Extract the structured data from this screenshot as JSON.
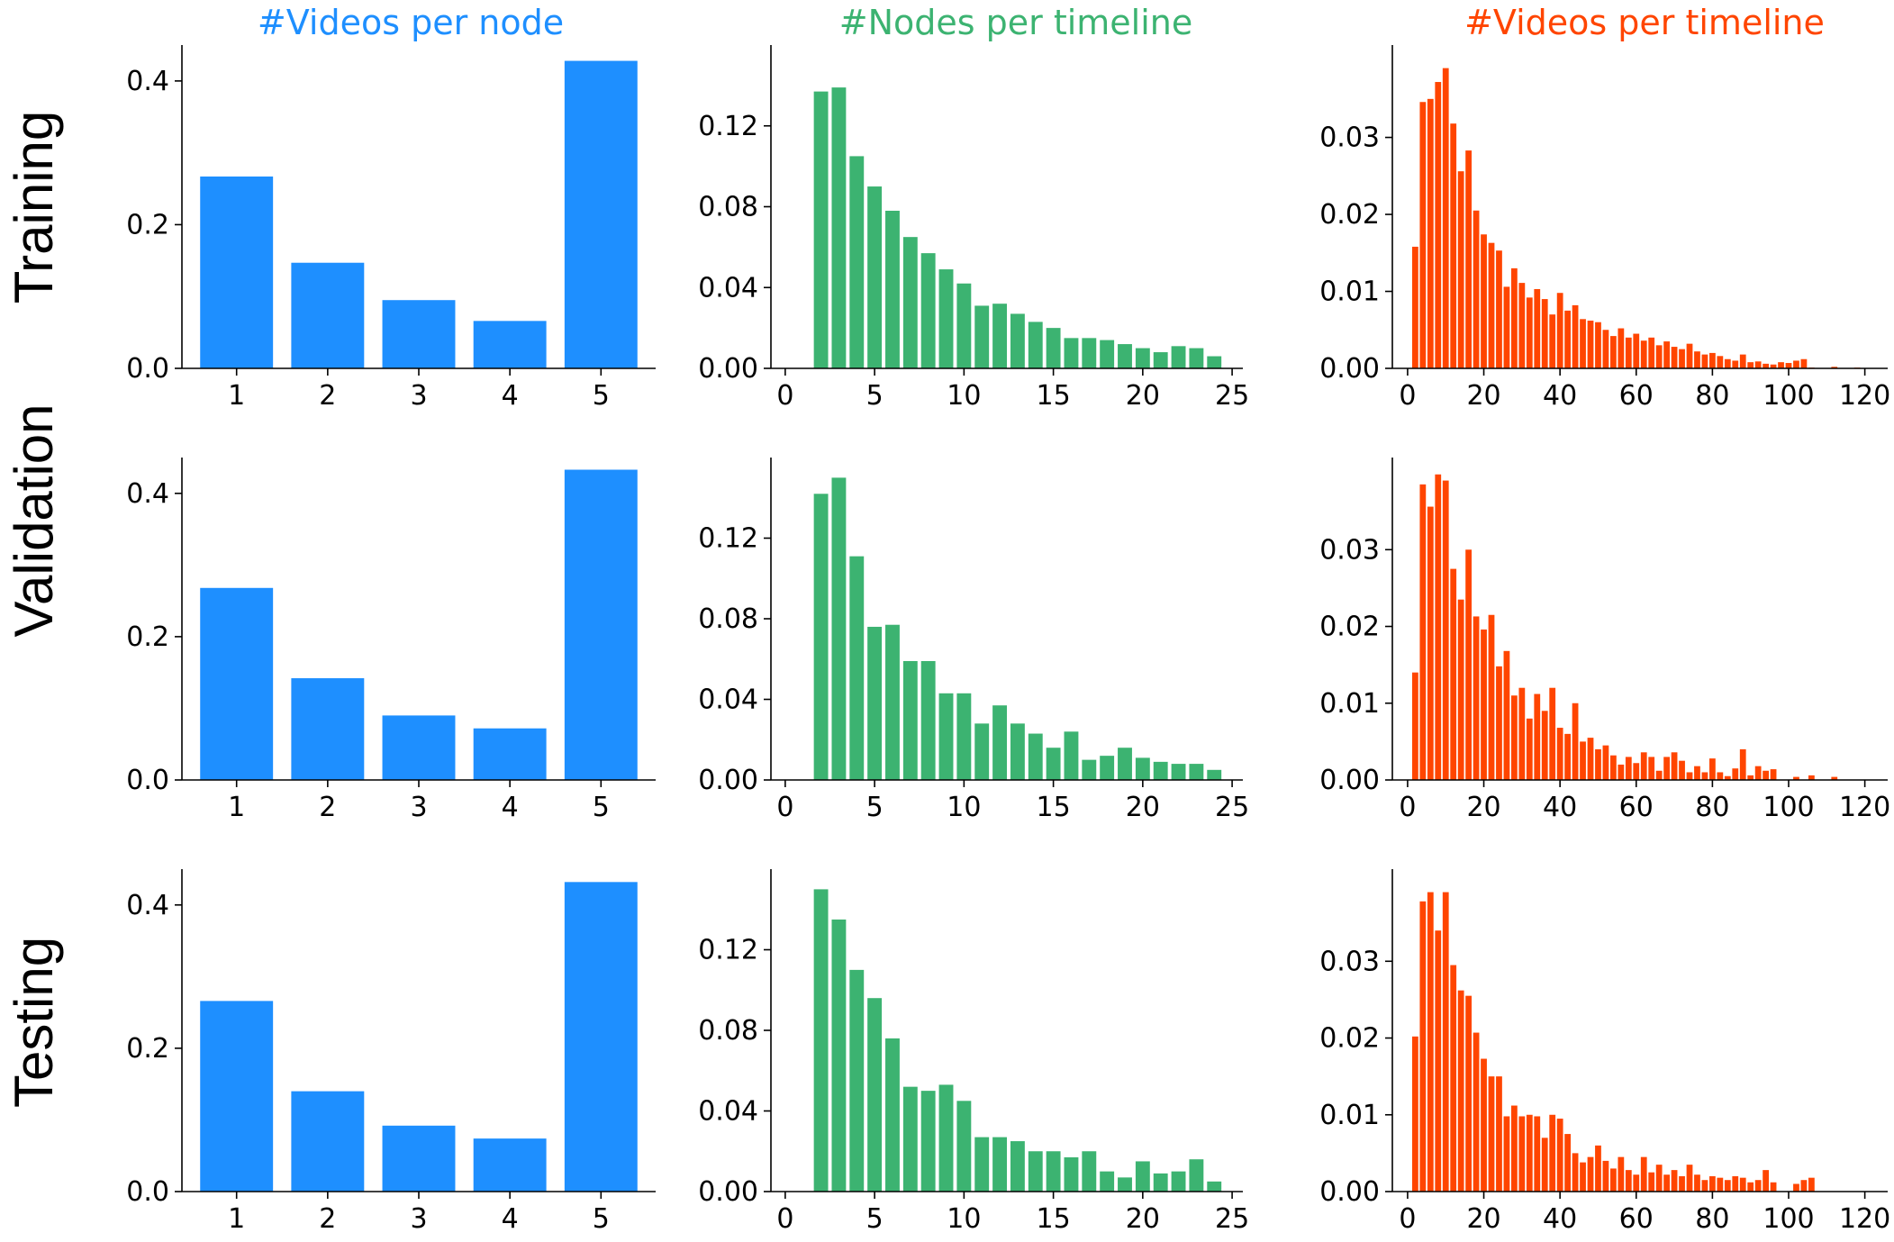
{
  "figure": {
    "column_titles": [
      {
        "text": "#Videos per node",
        "color": "#1e8fff"
      },
      {
        "text": "#Nodes per timeline",
        "color": "#3cb371"
      },
      {
        "text": "#Videos per timeline",
        "color": "#ff4500"
      }
    ],
    "row_labels": [
      "Training",
      "Validation",
      "Testing"
    ]
  },
  "chart_data": [
    {
      "type": "bar",
      "split": "Training",
      "column": "#Videos per node",
      "color": "#1e8fff",
      "x": [
        1,
        2,
        3,
        4,
        5
      ],
      "values": [
        0.267,
        0.147,
        0.095,
        0.066,
        0.428
      ],
      "xlim": [
        0.4,
        5.6
      ],
      "ylim": [
        0,
        0.45
      ],
      "xticks": [
        1,
        2,
        3,
        4,
        5
      ],
      "xtick_labels": [
        "1",
        "2",
        "3",
        "4",
        "5"
      ],
      "yticks": [
        0,
        0.2,
        0.4
      ],
      "ytick_labels": [
        "0.0",
        "0.2",
        "0.4"
      ],
      "grid": false,
      "bar_width": 0.8
    },
    {
      "type": "bar",
      "split": "Training",
      "column": "#Nodes per timeline",
      "color": "#3cb371",
      "x": [
        2,
        3,
        4,
        5,
        6,
        7,
        8,
        9,
        10,
        11,
        12,
        13,
        14,
        15,
        16,
        17,
        18,
        19,
        20,
        21,
        22,
        23,
        24
      ],
      "values": [
        0.137,
        0.139,
        0.105,
        0.09,
        0.078,
        0.065,
        0.057,
        0.049,
        0.042,
        0.031,
        0.032,
        0.027,
        0.023,
        0.02,
        0.015,
        0.015,
        0.014,
        0.012,
        0.01,
        0.008,
        0.011,
        0.01,
        0.006
      ],
      "xlim": [
        -0.8,
        25.6
      ],
      "ylim": [
        0,
        0.16
      ],
      "xticks": [
        0,
        5,
        10,
        15,
        20,
        25
      ],
      "xtick_labels": [
        "0",
        "5",
        "10",
        "15",
        "20",
        "25"
      ],
      "yticks": [
        0,
        0.04,
        0.08,
        0.12
      ],
      "ytick_labels": [
        "0.00",
        "0.04",
        "0.08",
        "0.12"
      ],
      "grid": false,
      "bar_width": 0.8
    },
    {
      "type": "bar",
      "split": "Training",
      "column": "#Videos per timeline",
      "color": "#ff4500",
      "x": [
        2,
        4,
        6,
        8,
        10,
        12,
        14,
        16,
        18,
        20,
        22,
        24,
        26,
        28,
        30,
        32,
        34,
        36,
        38,
        40,
        42,
        44,
        46,
        48,
        50,
        52,
        54,
        56,
        58,
        60,
        62,
        64,
        66,
        68,
        70,
        72,
        74,
        76,
        78,
        80,
        82,
        84,
        86,
        88,
        90,
        92,
        94,
        96,
        98,
        100,
        102,
        104,
        106,
        108,
        110,
        112,
        114,
        116,
        118
      ],
      "values": [
        0.0158,
        0.0346,
        0.035,
        0.0372,
        0.039,
        0.0318,
        0.0256,
        0.0283,
        0.0205,
        0.0174,
        0.0163,
        0.0153,
        0.0106,
        0.013,
        0.0111,
        0.0092,
        0.0103,
        0.009,
        0.007,
        0.0098,
        0.0075,
        0.0082,
        0.0064,
        0.0062,
        0.006,
        0.005,
        0.0042,
        0.0052,
        0.004,
        0.0045,
        0.0036,
        0.004,
        0.003,
        0.0035,
        0.0028,
        0.0025,
        0.0032,
        0.0022,
        0.0018,
        0.002,
        0.0016,
        0.0012,
        0.001,
        0.0018,
        0.0008,
        0.0009,
        0.0006,
        0.0005,
        0.0008,
        0.0007,
        0.001,
        0.0012,
        0.0001,
        0.0,
        0.0,
        0.0002,
        0.0,
        0.0,
        0.0001
      ],
      "xlim": [
        -4,
        126
      ],
      "ylim": [
        0,
        0.042
      ],
      "xticks": [
        0,
        20,
        40,
        60,
        80,
        100,
        120
      ],
      "xtick_labels": [
        "0",
        "20",
        "40",
        "60",
        "80",
        "100",
        "120"
      ],
      "yticks": [
        0,
        0.01,
        0.02,
        0.03
      ],
      "ytick_labels": [
        "0.00",
        "0.01",
        "0.02",
        "0.03"
      ],
      "grid": false,
      "bar_width": 1.6
    },
    {
      "type": "bar",
      "split": "Validation",
      "column": "#Videos per node",
      "color": "#1e8fff",
      "x": [
        1,
        2,
        3,
        4,
        5
      ],
      "values": [
        0.268,
        0.142,
        0.09,
        0.072,
        0.433
      ],
      "xlim": [
        0.4,
        5.6
      ],
      "ylim": [
        0,
        0.45
      ],
      "xticks": [
        1,
        2,
        3,
        4,
        5
      ],
      "xtick_labels": [
        "1",
        "2",
        "3",
        "4",
        "5"
      ],
      "yticks": [
        0,
        0.2,
        0.4
      ],
      "ytick_labels": [
        "0.0",
        "0.2",
        "0.4"
      ],
      "grid": false,
      "bar_width": 0.8
    },
    {
      "type": "bar",
      "split": "Validation",
      "column": "#Nodes per timeline",
      "color": "#3cb371",
      "x": [
        2,
        3,
        4,
        5,
        6,
        7,
        8,
        9,
        10,
        11,
        12,
        13,
        14,
        15,
        16,
        17,
        18,
        19,
        20,
        21,
        22,
        23,
        24
      ],
      "values": [
        0.142,
        0.15,
        0.111,
        0.076,
        0.077,
        0.059,
        0.059,
        0.043,
        0.043,
        0.028,
        0.037,
        0.028,
        0.023,
        0.016,
        0.024,
        0.01,
        0.012,
        0.016,
        0.011,
        0.009,
        0.008,
        0.008,
        0.005
      ],
      "xlim": [
        -0.8,
        25.6
      ],
      "ylim": [
        0,
        0.16
      ],
      "xticks": [
        0,
        5,
        10,
        15,
        20,
        25
      ],
      "xtick_labels": [
        "0",
        "5",
        "10",
        "15",
        "20",
        "25"
      ],
      "yticks": [
        0,
        0.04,
        0.08,
        0.12
      ],
      "ytick_labels": [
        "0.00",
        "0.04",
        "0.08",
        "0.12"
      ],
      "grid": false,
      "bar_width": 0.8
    },
    {
      "type": "bar",
      "split": "Validation",
      "column": "#Videos per timeline",
      "color": "#ff4500",
      "x": [
        2,
        4,
        6,
        8,
        10,
        12,
        14,
        16,
        18,
        20,
        22,
        24,
        26,
        28,
        30,
        32,
        34,
        36,
        38,
        40,
        42,
        44,
        46,
        48,
        50,
        52,
        54,
        56,
        58,
        60,
        62,
        64,
        66,
        68,
        70,
        72,
        74,
        76,
        78,
        80,
        82,
        84,
        86,
        88,
        90,
        92,
        94,
        96,
        98,
        100,
        102,
        104,
        106,
        108,
        110,
        112
      ],
      "values": [
        0.014,
        0.0385,
        0.0356,
        0.0398,
        0.039,
        0.0275,
        0.0235,
        0.03,
        0.0213,
        0.0196,
        0.0215,
        0.0148,
        0.0168,
        0.011,
        0.012,
        0.008,
        0.0112,
        0.009,
        0.012,
        0.0068,
        0.006,
        0.01,
        0.005,
        0.0055,
        0.004,
        0.0045,
        0.0032,
        0.002,
        0.003,
        0.0022,
        0.0036,
        0.003,
        0.0012,
        0.003,
        0.0036,
        0.0025,
        0.001,
        0.0018,
        0.001,
        0.0028,
        0.001,
        0.0005,
        0.0015,
        0.004,
        0.0006,
        0.0018,
        0.0012,
        0.0014,
        0.0,
        0.0,
        0.0004,
        0.0,
        0.0006,
        0.0,
        0.0,
        0.0004
      ],
      "xlim": [
        -4,
        126
      ],
      "ylim": [
        0,
        0.042
      ],
      "xticks": [
        0,
        20,
        40,
        60,
        80,
        100,
        120
      ],
      "xtick_labels": [
        "0",
        "20",
        "40",
        "60",
        "80",
        "100",
        "120"
      ],
      "yticks": [
        0,
        0.01,
        0.02,
        0.03
      ],
      "ytick_labels": [
        "0.00",
        "0.01",
        "0.02",
        "0.03"
      ],
      "grid": false,
      "bar_width": 1.6
    },
    {
      "type": "bar",
      "split": "Testing",
      "column": "#Videos per node",
      "color": "#1e8fff",
      "x": [
        1,
        2,
        3,
        4,
        5
      ],
      "values": [
        0.266,
        0.14,
        0.092,
        0.074,
        0.432
      ],
      "xlim": [
        0.4,
        5.6
      ],
      "ylim": [
        0,
        0.45
      ],
      "xticks": [
        1,
        2,
        3,
        4,
        5
      ],
      "xtick_labels": [
        "1",
        "2",
        "3",
        "4",
        "5"
      ],
      "yticks": [
        0,
        0.2,
        0.4
      ],
      "ytick_labels": [
        "0.0",
        "0.2",
        "0.4"
      ],
      "grid": false,
      "bar_width": 0.8
    },
    {
      "type": "bar",
      "split": "Testing",
      "column": "#Nodes per timeline",
      "color": "#3cb371",
      "x": [
        2,
        3,
        4,
        5,
        6,
        7,
        8,
        9,
        10,
        11,
        12,
        13,
        14,
        15,
        16,
        17,
        18,
        19,
        20,
        21,
        22,
        23,
        24
      ],
      "values": [
        0.15,
        0.135,
        0.11,
        0.096,
        0.076,
        0.052,
        0.05,
        0.053,
        0.045,
        0.027,
        0.027,
        0.025,
        0.02,
        0.02,
        0.017,
        0.02,
        0.01,
        0.007,
        0.015,
        0.009,
        0.01,
        0.016,
        0.005
      ],
      "xlim": [
        -0.8,
        25.6
      ],
      "ylim": [
        0,
        0.16
      ],
      "xticks": [
        0,
        5,
        10,
        15,
        20,
        25
      ],
      "xtick_labels": [
        "0",
        "5",
        "10",
        "15",
        "20",
        "25"
      ],
      "yticks": [
        0,
        0.04,
        0.08,
        0.12
      ],
      "ytick_labels": [
        "0.00",
        "0.04",
        "0.08",
        "0.12"
      ],
      "grid": false,
      "bar_width": 0.8
    },
    {
      "type": "bar",
      "split": "Testing",
      "column": "#Videos per timeline",
      "color": "#ff4500",
      "x": [
        2,
        4,
        6,
        8,
        10,
        12,
        14,
        16,
        18,
        20,
        22,
        24,
        26,
        28,
        30,
        32,
        34,
        36,
        38,
        40,
        42,
        44,
        46,
        48,
        50,
        52,
        54,
        56,
        58,
        60,
        62,
        64,
        66,
        68,
        70,
        72,
        74,
        76,
        78,
        80,
        82,
        84,
        86,
        88,
        90,
        92,
        94,
        96,
        98,
        100,
        102,
        104,
        106
      ],
      "values": [
        0.0202,
        0.0378,
        0.039,
        0.034,
        0.039,
        0.0295,
        0.0262,
        0.0255,
        0.0207,
        0.0173,
        0.015,
        0.015,
        0.0098,
        0.0112,
        0.0098,
        0.01,
        0.0098,
        0.007,
        0.01,
        0.0095,
        0.0075,
        0.005,
        0.0038,
        0.0045,
        0.006,
        0.004,
        0.003,
        0.0045,
        0.0028,
        0.0022,
        0.0045,
        0.0025,
        0.0035,
        0.0022,
        0.0028,
        0.002,
        0.0035,
        0.0022,
        0.0015,
        0.002,
        0.0018,
        0.0015,
        0.002,
        0.0018,
        0.0012,
        0.0015,
        0.0028,
        0.0012,
        0.0,
        0.0,
        0.001,
        0.0015,
        0.0018
      ],
      "xlim": [
        -4,
        126
      ],
      "ylim": [
        0,
        0.042
      ],
      "xticks": [
        0,
        20,
        40,
        60,
        80,
        100,
        120
      ],
      "xtick_labels": [
        "0",
        "20",
        "40",
        "60",
        "80",
        "100",
        "120"
      ],
      "yticks": [
        0,
        0.01,
        0.02,
        0.03
      ],
      "ytick_labels": [
        "0.00",
        "0.01",
        "0.02",
        "0.03"
      ],
      "grid": false,
      "bar_width": 1.6
    }
  ]
}
